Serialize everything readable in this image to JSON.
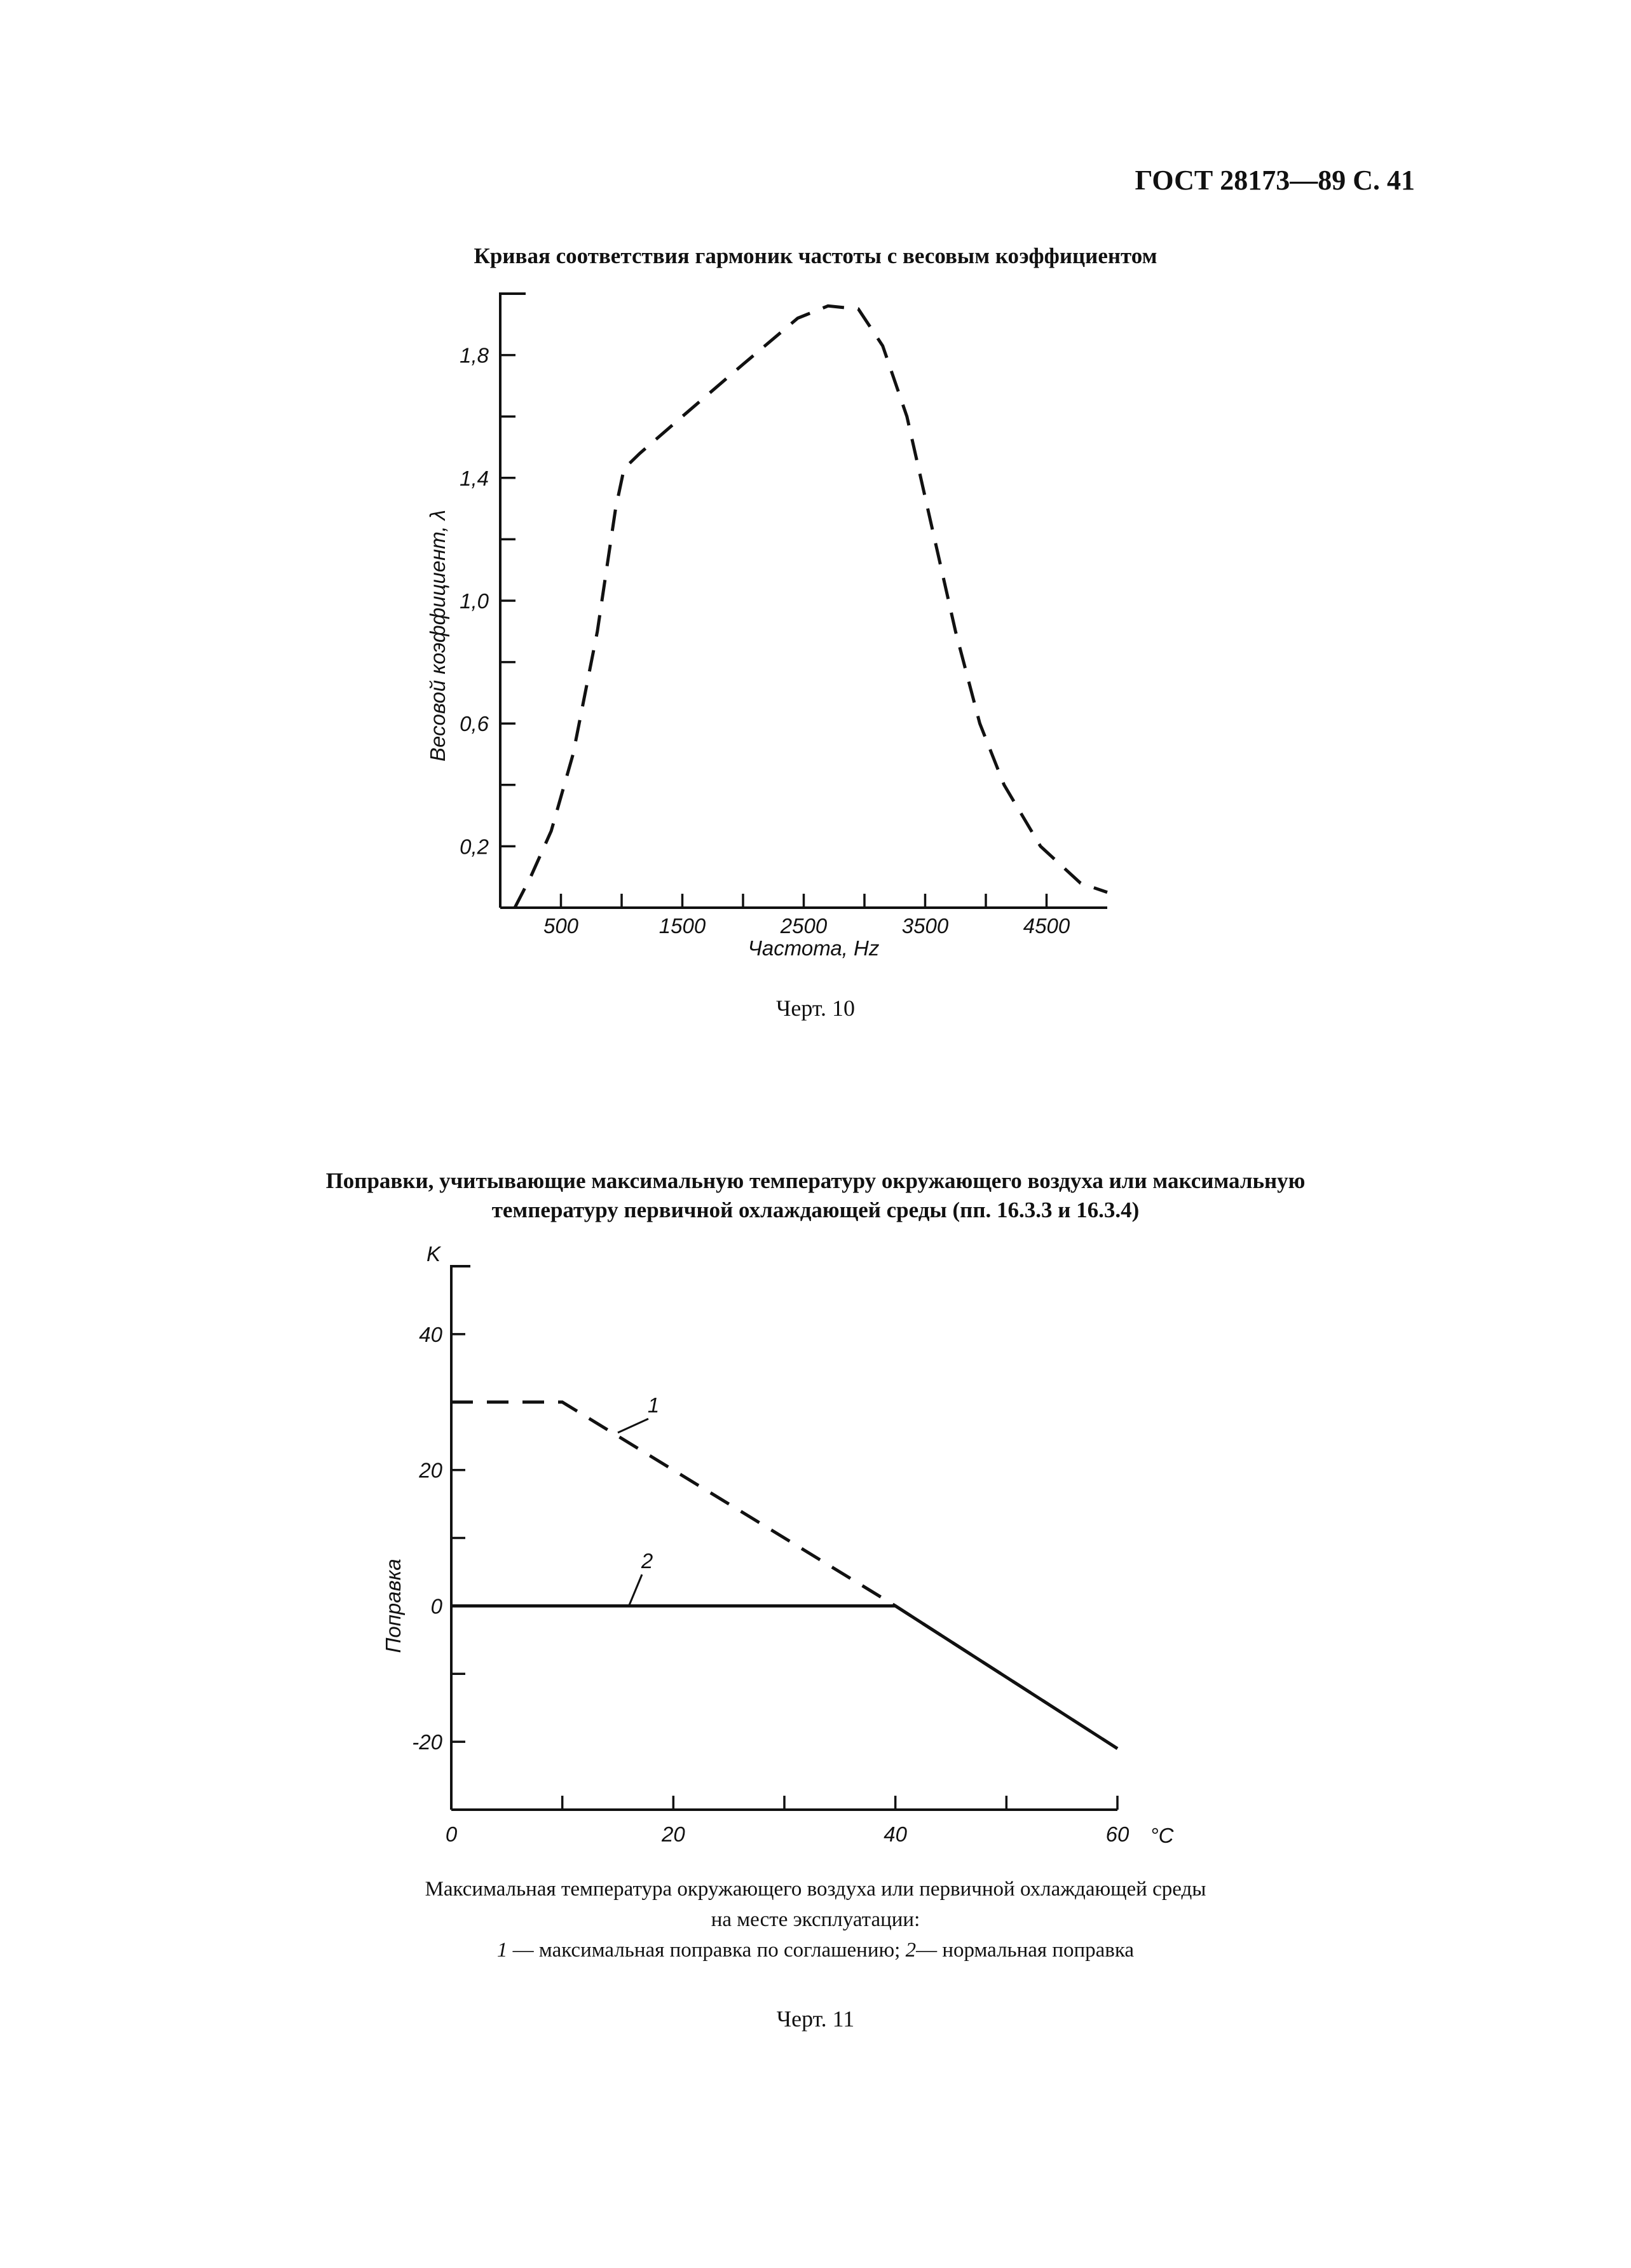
{
  "header": "ГОСТ 28173—89 С. 41",
  "fig10": {
    "title": "Кривая соответствия гармоник частоты с весовым коэффициентом",
    "caption": "Черт. 10"
  },
  "fig11": {
    "title_line1": "Поправки, учитывающие максимальную температуру окружающего воздуха или максимальную",
    "title_line2": "температуру первичной охлаждающей среды (пп. 16.3.3 и 16.3.4)",
    "note_line1": "Максимальная температура окружающего воздуха или первичной охлаждающей среды",
    "note_line2": "на месте эксплуатации:",
    "note_line3_num1": "1",
    "note_line3_text1": " — максимальная поправка по соглашению; ",
    "note_line3_num2": "2",
    "note_line3_text2": "— нормальная поправка",
    "caption": "Черт. 11"
  },
  "chart_data": [
    {
      "type": "line",
      "title": "Кривая соответствия гармоник частоты с весовым коэффициентом",
      "xlabel": "Частота, Hz",
      "ylabel": "Весовой коэффициент, λ",
      "xlim": [
        0,
        5000
      ],
      "ylim": [
        0,
        2.0
      ],
      "x_tick_labels": [
        "500",
        "1500",
        "2500",
        "3500",
        "4500"
      ],
      "x_tick_values": [
        500,
        1500,
        2500,
        3500,
        4500
      ],
      "y_tick_labels": [
        "0,2",
        "0,6",
        "1,0",
        "1,4",
        "1,8"
      ],
      "y_tick_values": [
        0.2,
        0.6,
        1.0,
        1.4,
        1.8
      ],
      "line_style": "dashed",
      "series": [
        {
          "x": [
            120,
            250,
            420,
            600,
            800,
            950,
            1020,
            1150,
            1500,
            2000,
            2450,
            2700,
            2950,
            3150,
            3350,
            3550,
            3750,
            3950,
            4150,
            4450,
            4780,
            5000
          ],
          "y": [
            0,
            0.1,
            0.25,
            0.5,
            0.9,
            1.3,
            1.43,
            1.48,
            1.6,
            1.77,
            1.92,
            1.96,
            1.95,
            1.83,
            1.6,
            1.25,
            0.9,
            0.6,
            0.4,
            0.2,
            0.08,
            0.05
          ]
        }
      ]
    },
    {
      "type": "line",
      "xlabel": "°C",
      "ylabel": "Поправка",
      "y_unit": "K",
      "xlim": [
        0,
        60
      ],
      "ylim": [
        -30,
        50
      ],
      "x_tick_labels": [
        "0",
        "20",
        "40",
        "60"
      ],
      "x_tick_values": [
        0,
        20,
        40,
        60
      ],
      "y_tick_labels": [
        "-20",
        "0",
        "20",
        "40"
      ],
      "y_tick_values": [
        -20,
        0,
        20,
        40
      ],
      "series": [
        {
          "name": "1",
          "style": "dashed",
          "x": [
            0,
            10,
            40,
            60
          ],
          "y": [
            30,
            30,
            0,
            -21
          ]
        },
        {
          "name": "2",
          "style": "solid",
          "x": [
            0,
            40,
            60
          ],
          "y": [
            0,
            0,
            -21
          ]
        }
      ]
    }
  ]
}
